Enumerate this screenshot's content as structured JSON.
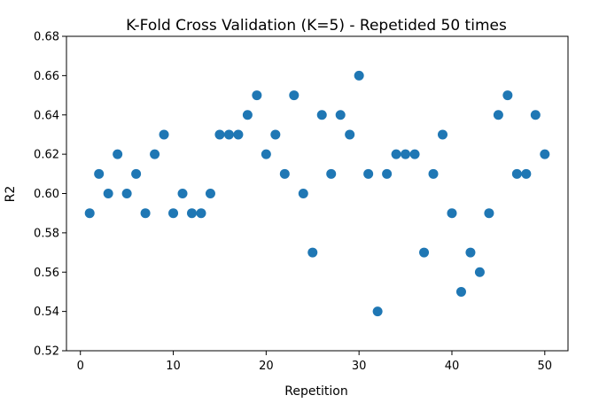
{
  "chart_data": {
    "type": "scatter",
    "title": "K-Fold Cross Validation (K=5) - Repetided 50 times",
    "xlabel": "Repetition",
    "ylabel": "R2",
    "xlim": [
      -1.5,
      52.5
    ],
    "ylim": [
      0.52,
      0.68
    ],
    "xticks": [
      0,
      10,
      20,
      30,
      40,
      50
    ],
    "yticks": [
      0.52,
      0.54,
      0.56,
      0.58,
      0.6,
      0.62,
      0.64,
      0.66,
      0.68
    ],
    "grid": false,
    "marker_color": "#1f77b4",
    "series": [
      {
        "x": [
          1,
          2,
          3,
          4,
          5,
          6,
          7,
          8,
          9,
          10,
          11,
          12,
          13,
          14,
          15,
          16,
          17,
          18,
          19,
          20,
          21,
          22,
          23,
          24,
          25,
          26,
          27,
          28,
          29,
          30,
          31,
          32,
          33,
          34,
          35,
          36,
          37,
          38,
          39,
          40,
          41,
          42,
          43,
          44,
          45,
          46,
          47,
          48,
          49,
          50
        ],
        "y": [
          0.59,
          0.61,
          0.6,
          0.62,
          0.6,
          0.61,
          0.59,
          0.62,
          0.63,
          0.59,
          0.6,
          0.59,
          0.59,
          0.6,
          0.63,
          0.63,
          0.63,
          0.64,
          0.65,
          0.62,
          0.63,
          0.61,
          0.65,
          0.6,
          0.57,
          0.64,
          0.61,
          0.64,
          0.63,
          0.66,
          0.61,
          0.54,
          0.61,
          0.62,
          0.62,
          0.62,
          0.57,
          0.61,
          0.63,
          0.59,
          0.55,
          0.57,
          0.56,
          0.59,
          0.64,
          0.65,
          0.61,
          0.61,
          0.64,
          0.62
        ]
      }
    ]
  }
}
